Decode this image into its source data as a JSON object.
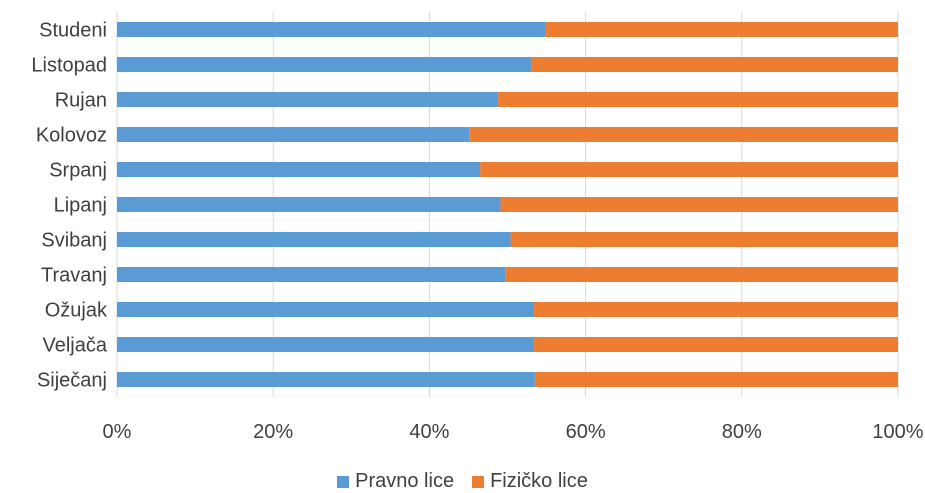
{
  "chart_data": {
    "type": "bar",
    "orientation": "horizontal",
    "stacked": "percent",
    "categories": [
      "Siječanj",
      "Veljača",
      "Ožujak",
      "Travanj",
      "Svibanj",
      "Lipanj",
      "Srpanj",
      "Kolovoz",
      "Rujan",
      "Listopad",
      "Studeni"
    ],
    "series": [
      {
        "name": "Pravno lice",
        "color": "#5B9BD5",
        "values": [
          53.5,
          53.4,
          53.4,
          49.7,
          50.4,
          49.1,
          46.5,
          45.1,
          48.8,
          53.0,
          54.8
        ]
      },
      {
        "name": "Fizičko lice",
        "color": "#ED7D31",
        "values": [
          46.5,
          46.6,
          46.6,
          50.3,
          49.6,
          50.9,
          53.5,
          54.9,
          51.2,
          47.0,
          45.2
        ]
      }
    ],
    "x_ticks": [
      "0%",
      "20%",
      "40%",
      "60%",
      "80%",
      "100%"
    ],
    "xlim": [
      0,
      100
    ],
    "grid": true,
    "legend_position": "bottom"
  }
}
